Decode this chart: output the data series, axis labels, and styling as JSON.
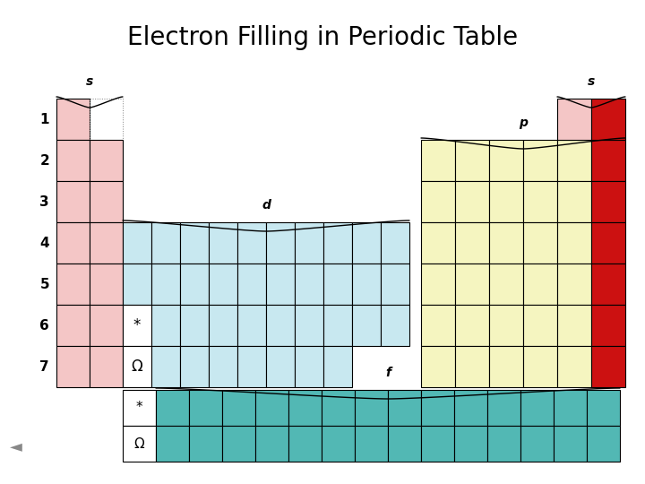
{
  "title": "Electron Filling in Periodic Table",
  "bg_color": "#ffffff",
  "s_color": "#f4c6c6",
  "p_color": "#f5f5c0",
  "d_color": "#c8e8f0",
  "f_color": "#52b8b4",
  "red_color": "#cc1111",
  "s_label": "s",
  "p_label": "p",
  "d_label": "d",
  "f_label": "f",
  "star": "*",
  "omega": "Ω",
  "title_fontsize": 20,
  "label_fontsize": 11,
  "row_label_fontsize": 11
}
